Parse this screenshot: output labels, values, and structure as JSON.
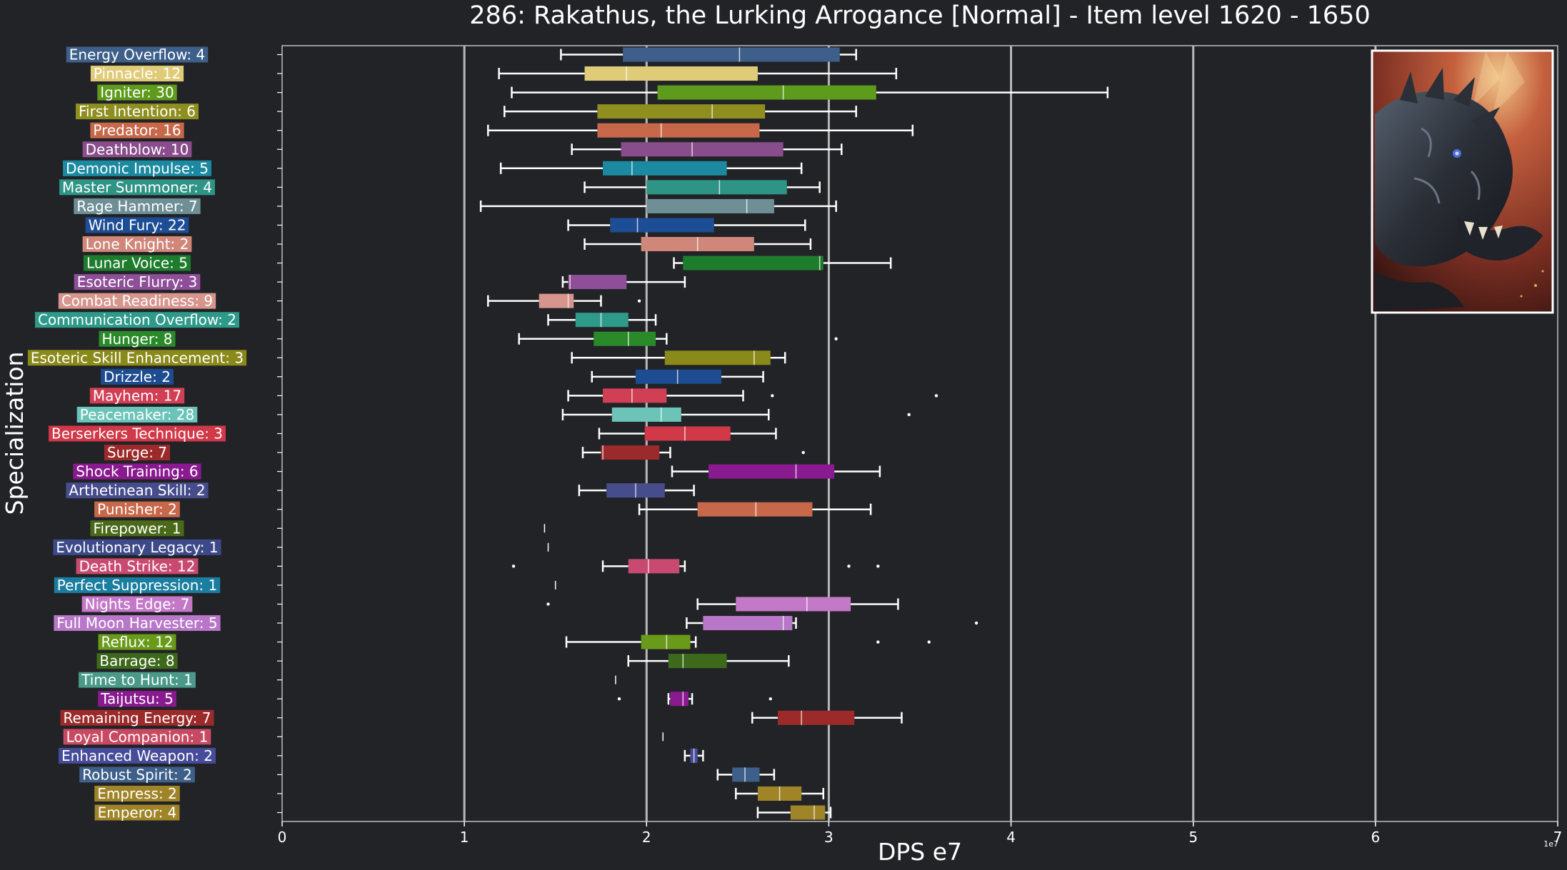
{
  "chart_data": {
    "type": "box",
    "orientation": "horizontal",
    "title": "286: Rakathus, the Lurking Arrogance [Normal] - Item level 1620 - 1650",
    "xlabel": "DPS e7",
    "ylabel": "Specialization",
    "x_exponent_label": "1e7",
    "xlim": [
      0,
      7
    ],
    "x_ticks": [
      0,
      1,
      2,
      3,
      4,
      5,
      6,
      7
    ],
    "grid": "vertical at major ticks",
    "inset_image": "dragon-portrait",
    "categories": [
      {
        "label": "Energy Overflow: 4",
        "color": "#3d5f8a",
        "stats": {
          "wlo": 1.53,
          "q1": 1.87,
          "med": 2.51,
          "q3": 3.06,
          "whi": 3.15
        },
        "outliers": []
      },
      {
        "label": "Pinnacle: 12",
        "color": "#e0cc78",
        "stats": {
          "wlo": 1.19,
          "q1": 1.66,
          "med": 1.89,
          "q3": 2.61,
          "whi": 3.37
        },
        "outliers": []
      },
      {
        "label": "Igniter: 30",
        "color": "#5e9a1c",
        "stats": {
          "wlo": 1.26,
          "q1": 2.06,
          "med": 2.75,
          "q3": 3.26,
          "whi": 4.53
        },
        "outliers": []
      },
      {
        "label": "First Intention: 6",
        "color": "#8f8f1f",
        "stats": {
          "wlo": 1.22,
          "q1": 1.73,
          "med": 2.36,
          "q3": 2.65,
          "whi": 3.15
        },
        "outliers": []
      },
      {
        "label": "Predator: 16",
        "color": "#c8684a",
        "stats": {
          "wlo": 1.13,
          "q1": 1.73,
          "med": 2.08,
          "q3": 2.62,
          "whi": 3.46
        },
        "outliers": []
      },
      {
        "label": "Deathblow: 10",
        "color": "#8a4d8c",
        "stats": {
          "wlo": 1.59,
          "q1": 1.86,
          "med": 2.25,
          "q3": 2.75,
          "whi": 3.07
        },
        "outliers": []
      },
      {
        "label": "Demonic Impulse: 5",
        "color": "#1b8aa0",
        "stats": {
          "wlo": 1.2,
          "q1": 1.76,
          "med": 1.92,
          "q3": 2.44,
          "whi": 2.85
        },
        "outliers": []
      },
      {
        "label": "Master Summoner: 4",
        "color": "#2e9485",
        "stats": {
          "wlo": 1.66,
          "q1": 2.0,
          "med": 2.4,
          "q3": 2.77,
          "whi": 2.95
        },
        "outliers": []
      },
      {
        "label": "Rage Hammer: 7",
        "color": "#6f8f96",
        "stats": {
          "wlo": 1.09,
          "q1": 2.0,
          "med": 2.55,
          "q3": 2.7,
          "whi": 3.04
        },
        "outliers": []
      },
      {
        "label": "Wind Fury: 22",
        "color": "#1d4d94",
        "stats": {
          "wlo": 1.57,
          "q1": 1.8,
          "med": 1.95,
          "q3": 2.37,
          "whi": 2.87
        },
        "outliers": []
      },
      {
        "label": "Lone Knight: 2",
        "color": "#d0877a",
        "stats": {
          "wlo": 1.66,
          "q1": 1.97,
          "med": 2.28,
          "q3": 2.59,
          "whi": 2.9
        },
        "outliers": []
      },
      {
        "label": "Lunar Voice: 5",
        "color": "#1e7d2c",
        "stats": {
          "wlo": 2.15,
          "q1": 2.2,
          "med": 2.95,
          "q3": 2.97,
          "whi": 3.34
        },
        "outliers": []
      },
      {
        "label": "Esoteric Flurry: 3",
        "color": "#8e4f98",
        "stats": {
          "wlo": 1.54,
          "q1": 1.57,
          "med": 1.58,
          "q3": 1.89,
          "whi": 2.21
        },
        "outliers": []
      },
      {
        "label": "Combat Readiness: 9",
        "color": "#d6958d",
        "stats": {
          "wlo": 1.13,
          "q1": 1.41,
          "med": 1.57,
          "q3": 1.6,
          "whi": 1.75
        },
        "outliers": [
          1.96
        ]
      },
      {
        "label": "Communication Overflow: 2",
        "color": "#2e9a8a",
        "stats": {
          "wlo": 1.46,
          "q1": 1.61,
          "med": 1.75,
          "q3": 1.9,
          "whi": 2.05
        },
        "outliers": []
      },
      {
        "label": "Hunger: 8",
        "color": "#2a8a2a",
        "stats": {
          "wlo": 1.3,
          "q1": 1.71,
          "med": 1.9,
          "q3": 2.05,
          "whi": 2.11
        },
        "outliers": [
          3.04
        ]
      },
      {
        "label": "Esoteric Skill Enhancement: 3",
        "color": "#8a8a1a",
        "stats": {
          "wlo": 1.59,
          "q1": 2.1,
          "med": 2.59,
          "q3": 2.68,
          "whi": 2.76
        },
        "outliers": []
      },
      {
        "label": "Drizzle: 2",
        "color": "#1d4c90",
        "stats": {
          "wlo": 1.7,
          "q1": 1.94,
          "med": 2.17,
          "q3": 2.41,
          "whi": 2.64
        },
        "outliers": []
      },
      {
        "label": "Mayhem: 17",
        "color": "#d13f55",
        "stats": {
          "wlo": 1.57,
          "q1": 1.76,
          "med": 1.92,
          "q3": 2.11,
          "whi": 2.53
        },
        "outliers": [
          2.69,
          3.59
        ]
      },
      {
        "label": "Peacemaker: 28",
        "color": "#6cc4b8",
        "stats": {
          "wlo": 1.54,
          "q1": 1.81,
          "med": 2.08,
          "q3": 2.19,
          "whi": 2.67
        },
        "outliers": [
          3.44
        ]
      },
      {
        "label": "Berserkers Technique: 3",
        "color": "#d13848",
        "stats": {
          "wlo": 1.74,
          "q1": 1.99,
          "med": 2.21,
          "q3": 2.46,
          "whi": 2.71
        },
        "outliers": []
      },
      {
        "label": "Surge: 7",
        "color": "#9c2a2a",
        "stats": {
          "wlo": 1.65,
          "q1": 1.75,
          "med": 1.76,
          "q3": 2.07,
          "whi": 2.13
        },
        "outliers": [
          2.86
        ]
      },
      {
        "label": "Shock Training: 6",
        "color": "#8a1a8f",
        "stats": {
          "wlo": 2.14,
          "q1": 2.34,
          "med": 2.82,
          "q3": 3.03,
          "whi": 3.28
        },
        "outliers": []
      },
      {
        "label": "Arthetinean Skill: 2",
        "color": "#464c8c",
        "stats": {
          "wlo": 1.63,
          "q1": 1.78,
          "med": 1.94,
          "q3": 2.1,
          "whi": 2.26
        },
        "outliers": []
      },
      {
        "label": "Punisher: 2",
        "color": "#c8684a",
        "stats": {
          "wlo": 1.96,
          "q1": 2.28,
          "med": 2.6,
          "q3": 2.91,
          "whi": 3.23
        },
        "outliers": []
      },
      {
        "label": "Firepower: 1",
        "color": "#4a6a1a",
        "stats": {
          "wlo": 1.44,
          "q1": 1.44,
          "med": 1.44,
          "q3": 1.44,
          "whi": 1.44
        },
        "outliers": []
      },
      {
        "label": "Evolutionary Legacy: 1",
        "color": "#3d4a8a",
        "stats": {
          "wlo": 1.46,
          "q1": 1.46,
          "med": 1.46,
          "q3": 1.46,
          "whi": 1.46
        },
        "outliers": []
      },
      {
        "label": "Death Strike: 12",
        "color": "#c84a70",
        "stats": {
          "wlo": 1.76,
          "q1": 1.9,
          "med": 2.01,
          "q3": 2.18,
          "whi": 2.21
        },
        "outliers": [
          1.27,
          3.11,
          3.27
        ]
      },
      {
        "label": "Perfect Suppression: 1",
        "color": "#1a7ea0",
        "stats": {
          "wlo": 1.5,
          "q1": 1.5,
          "med": 1.5,
          "q3": 1.5,
          "whi": 1.5
        },
        "outliers": []
      },
      {
        "label": "Nights Edge: 7",
        "color": "#c478c8",
        "stats": {
          "wlo": 2.28,
          "q1": 2.49,
          "med": 2.88,
          "q3": 3.12,
          "whi": 3.38
        },
        "outliers": [
          1.46
        ]
      },
      {
        "label": "Full Moon Harvester: 5",
        "color": "#b877c8",
        "stats": {
          "wlo": 2.22,
          "q1": 2.31,
          "med": 2.75,
          "q3": 2.8,
          "whi": 2.82
        },
        "outliers": [
          3.81
        ]
      },
      {
        "label": "Reflux: 12",
        "color": "#6a9a1a",
        "stats": {
          "wlo": 1.56,
          "q1": 1.97,
          "med": 2.11,
          "q3": 2.24,
          "whi": 2.27
        },
        "outliers": [
          3.27,
          3.55
        ]
      },
      {
        "label": "Barrage: 8",
        "color": "#3d6a1a",
        "stats": {
          "wlo": 1.9,
          "q1": 2.12,
          "med": 2.2,
          "q3": 2.44,
          "whi": 2.78
        },
        "outliers": []
      },
      {
        "label": "Time to Hunt: 1",
        "color": "#4a9a8a",
        "stats": {
          "wlo": 1.83,
          "q1": 1.83,
          "med": 1.83,
          "q3": 1.83,
          "whi": 1.83
        },
        "outliers": []
      },
      {
        "label": "Taijutsu: 5",
        "color": "#8a1a8f",
        "stats": {
          "wlo": 2.12,
          "q1": 2.13,
          "med": 2.2,
          "q3": 2.23,
          "whi": 2.25
        },
        "outliers": [
          1.85,
          2.68
        ]
      },
      {
        "label": "Remaining Energy: 7",
        "color": "#9c2a2a",
        "stats": {
          "wlo": 2.58,
          "q1": 2.72,
          "med": 2.85,
          "q3": 3.14,
          "whi": 3.4
        },
        "outliers": []
      },
      {
        "label": "Loyal Companion: 1",
        "color": "#c84a62",
        "stats": {
          "wlo": 2.09,
          "q1": 2.09,
          "med": 2.09,
          "q3": 2.09,
          "whi": 2.09
        },
        "outliers": []
      },
      {
        "label": "Enhanced Weapon: 2",
        "color": "#464c9a",
        "stats": {
          "wlo": 2.21,
          "q1": 2.24,
          "med": 2.26,
          "q3": 2.28,
          "whi": 2.31
        },
        "outliers": []
      },
      {
        "label": "Robust Spirit: 2",
        "color": "#3d5f8a",
        "stats": {
          "wlo": 2.39,
          "q1": 2.47,
          "med": 2.54,
          "q3": 2.62,
          "whi": 2.7
        },
        "outliers": []
      },
      {
        "label": "Empress: 2",
        "color": "#a08428",
        "stats": {
          "wlo": 2.49,
          "q1": 2.61,
          "med": 2.73,
          "q3": 2.85,
          "whi": 2.97
        },
        "outliers": []
      },
      {
        "label": "Emperor: 4",
        "color": "#a08428",
        "stats": {
          "wlo": 2.61,
          "q1": 2.79,
          "med": 2.92,
          "q3": 2.98,
          "whi": 3.01
        },
        "outliers": []
      }
    ]
  }
}
